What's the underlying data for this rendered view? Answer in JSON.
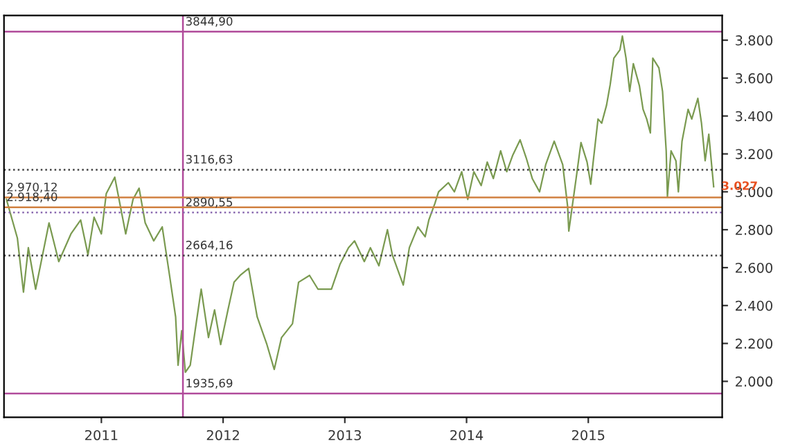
{
  "chart_data": {
    "type": "line",
    "x": [
      2010.22,
      2010.31,
      2010.36,
      2010.4,
      2010.46,
      2010.57,
      2010.65,
      2010.75,
      2010.83,
      2010.89,
      2010.94,
      2011.0,
      2011.04,
      2011.11,
      2011.2,
      2011.26,
      2011.31,
      2011.36,
      2011.43,
      2011.5,
      2011.56,
      2011.61,
      2011.63,
      2011.66,
      2011.69,
      2011.73,
      2011.77,
      2011.82,
      2011.88,
      2011.93,
      2011.98,
      2012.04,
      2012.09,
      2012.14,
      2012.21,
      2012.28,
      2012.36,
      2012.42,
      2012.48,
      2012.57,
      2012.62,
      2012.71,
      2012.78,
      2012.89,
      2012.96,
      2013.03,
      2013.08,
      2013.16,
      2013.21,
      2013.28,
      2013.35,
      2013.39,
      2013.48,
      2013.53,
      2013.6,
      2013.66,
      2013.69,
      2013.74,
      2013.77,
      2013.85,
      2013.9,
      2013.96,
      2014.01,
      2014.06,
      2014.12,
      2014.17,
      2014.22,
      2014.28,
      2014.33,
      2014.38,
      2014.44,
      2014.49,
      2014.54,
      2014.6,
      2014.65,
      2014.72,
      2014.79,
      2014.83,
      2014.84,
      2014.9,
      2014.94,
      2014.99,
      2015.02,
      2015.04,
      2015.08,
      2015.11,
      2015.15,
      2015.18,
      2015.21,
      2015.26,
      2015.28,
      2015.31,
      2015.34,
      2015.37,
      2015.42,
      2015.45,
      2015.48,
      2015.51,
      2015.53,
      2015.58,
      2015.61,
      2015.64,
      2015.65,
      2015.68,
      2015.72,
      2015.74,
      2015.77,
      2015.82,
      2015.85,
      2015.9,
      2015.93,
      2015.96,
      2015.99,
      2016.01,
      2016.03
    ],
    "series": [
      {
        "color": "#7a9a50",
        "values": [
          2960,
          2756,
          2471,
          2705,
          2486,
          2836,
          2632,
          2778,
          2851,
          2668,
          2866,
          2778,
          2990,
          3077,
          2778,
          2960,
          3019,
          2836,
          2741,
          2815,
          2559,
          2340,
          2085,
          2267,
          2048,
          2085,
          2267,
          2486,
          2231,
          2377,
          2194,
          2377,
          2523,
          2559,
          2596,
          2340,
          2194,
          2063,
          2231,
          2304,
          2523,
          2559,
          2486,
          2486,
          2617,
          2705,
          2741,
          2632,
          2705,
          2610,
          2800,
          2668,
          2508,
          2705,
          2815,
          2763,
          2851,
          2939,
          3000,
          3048,
          3000,
          3106,
          2960,
          3106,
          3033,
          3157,
          3070,
          3216,
          3106,
          3194,
          3274,
          3179,
          3070,
          3000,
          3143,
          3267,
          3143,
          2924,
          2793,
          3070,
          3260,
          3157,
          3040,
          3157,
          3384,
          3362,
          3457,
          3566,
          3705,
          3749,
          3822,
          3705,
          3530,
          3676,
          3559,
          3435,
          3384,
          3311,
          3705,
          3654,
          3530,
          3216,
          2975,
          3216,
          3164,
          3000,
          3267,
          3435,
          3384,
          3493,
          3362,
          3164,
          3304,
          3164,
          3027
        ]
      }
    ],
    "xlim": [
      2010.2,
      2016.1
    ],
    "xticks": [
      2011,
      2012,
      2013,
      2014,
      2015
    ],
    "ylim": [
      1810,
      3930
    ],
    "yticks": [
      {
        "value": 2000,
        "label": "2.000"
      },
      {
        "value": 2200,
        "label": "2.200"
      },
      {
        "value": 2400,
        "label": "2.400"
      },
      {
        "value": 2600,
        "label": "2.600"
      },
      {
        "value": 2800,
        "label": "2.800"
      },
      {
        "value": 3000,
        "label": "3.000"
      },
      {
        "value": 3200,
        "label": "3.200"
      },
      {
        "value": 3400,
        "label": "3.400"
      },
      {
        "value": 3600,
        "label": "3.600"
      },
      {
        "value": 3800,
        "label": "3.800"
      }
    ],
    "ref_lines": [
      {
        "axis": "x",
        "value": 2011.67,
        "color": "#b04a9a",
        "line_style": "solid"
      },
      {
        "axis": "y",
        "value": 3844.9,
        "label": "3844,90",
        "color": "#b04a9a",
        "line_style": "solid"
      },
      {
        "axis": "y",
        "value": 3116.63,
        "label": "3116,63",
        "color": "#404040",
        "line_style": "dotted"
      },
      {
        "axis": "y",
        "value": 2890.55,
        "label": "2890,55",
        "color": "#8a6ab0",
        "line_style": "dotted"
      },
      {
        "axis": "y",
        "value": 2664.16,
        "label": "2664,16",
        "color": "#404040",
        "line_style": "dotted"
      },
      {
        "axis": "y",
        "value": 1935.69,
        "label": "1935,69",
        "color": "#b04a9a",
        "line_style": "solid"
      },
      {
        "axis": "y",
        "value": 2970.12,
        "label": "2.970,12",
        "color": "#d08040",
        "line_style": "solid"
      },
      {
        "axis": "y",
        "value": 2918.4,
        "label": "2.918,40",
        "color": "#d08040",
        "line_style": "solid"
      }
    ],
    "annotations": [
      {
        "text": "3.027",
        "x": 2016.03,
        "y": 3027
      }
    ],
    "grid": false,
    "legend": false,
    "marker": "none",
    "line_style": "solid"
  }
}
